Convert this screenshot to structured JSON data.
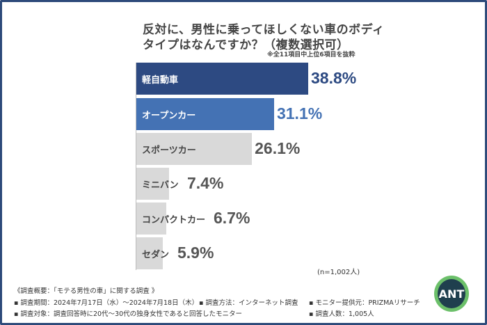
{
  "title_line1": "反対に、男性に乗ってほしくない車のボディ",
  "title_line2": "タイプはなんですか？（複数選択可）",
  "note": "※全11項目中上位6項目を抜粋",
  "sample_note": "(n=1,002人)",
  "chart_data": {
    "type": "bar",
    "orientation": "horizontal",
    "title": "反対に、男性に乗ってほしくない車のボディタイプはなんですか？（複数選択可）",
    "categories": [
      "軽自動車",
      "オープンカー",
      "スポーツカー",
      "ミニバン",
      "コンパクトカー",
      "セダン"
    ],
    "values": [
      38.8,
      31.1,
      26.1,
      7.4,
      6.7,
      5.9
    ],
    "value_labels": [
      "38.8%",
      "31.1%",
      "26.1%",
      "7.4%",
      "6.7%",
      "5.9%"
    ],
    "unit": "%",
    "colors": [
      "#2d4a82",
      "#4472b4",
      "#d9d9d9",
      "#d9d9d9",
      "#d9d9d9",
      "#d9d9d9"
    ],
    "label_colors": [
      "#ffffff",
      "#ffffff",
      "#444444",
      "#444444",
      "#444444",
      "#444444"
    ],
    "pct_colors": [
      "#2d4a82",
      "#4472b4",
      "#555555",
      "#555555",
      "#555555",
      "#555555"
    ]
  },
  "footer": {
    "line1": "《調査概要：「モテる男性の車」に関する調査 》",
    "period": "▪ 調査期間：2024年7月17日（水）～2024年7月18日（木）",
    "method": "▪ 調査方法：インターネット調査",
    "provider": "▪ モニター提供元：PRIZMAリサーチ",
    "target": "▪ 調査対象：調査回答時に20代～30代の独身女性であると回答したモニター",
    "count": "▪ 調査人数：1,005人"
  },
  "logo_text": "ANT"
}
